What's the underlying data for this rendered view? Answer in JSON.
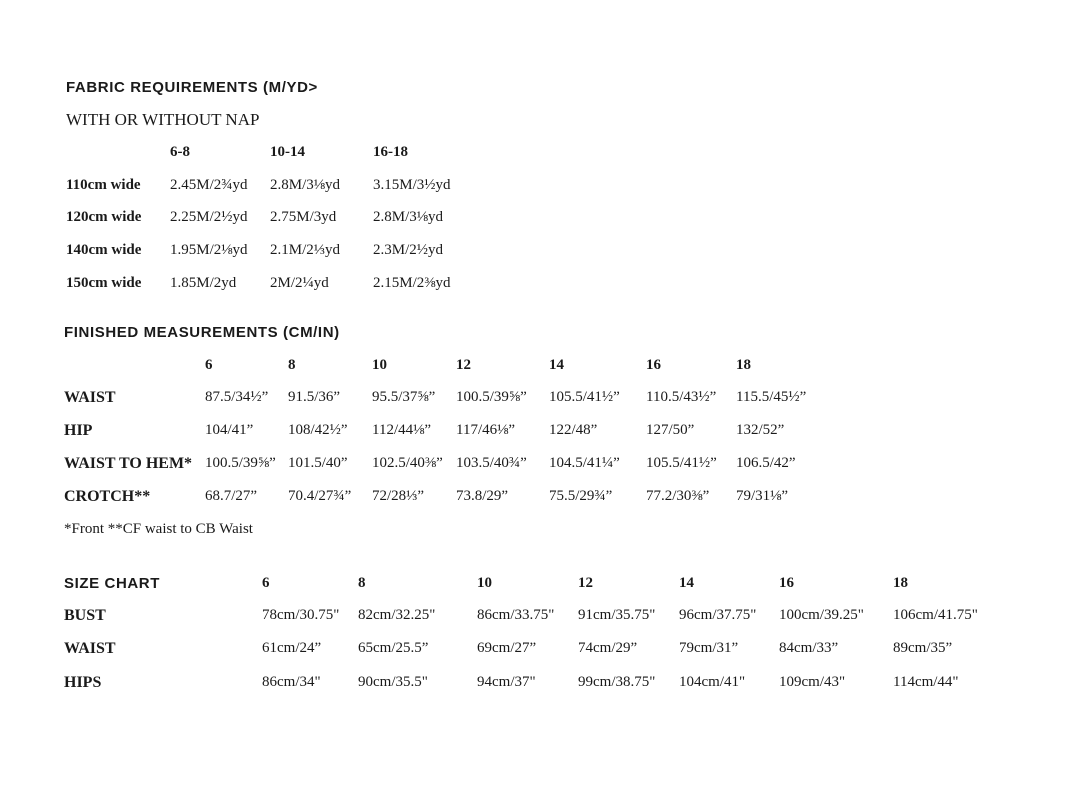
{
  "fabric": {
    "title": "FABRIC REQUIREMENTS (M/YD>",
    "subtitle": "WITH OR WITHOUT NAP",
    "headers": [
      "6-8",
      "10-14",
      "16-18"
    ],
    "rows": [
      {
        "label": "110cm wide",
        "values": [
          "2.45M/2¾yd",
          "2.8M/3⅛yd",
          "3.15M/3½yd"
        ]
      },
      {
        "label": "120cm wide",
        "values": [
          "2.25M/2½yd",
          "2.75M/3yd",
          "2.8M/3⅛yd"
        ]
      },
      {
        "label": "140cm wide",
        "values": [
          "1.95M/2⅛yd",
          "2.1M/2⅓yd",
          "2.3M/2½yd"
        ]
      },
      {
        "label": "150cm wide",
        "values": [
          "1.85M/2yd",
          "2M/2¼yd",
          "2.15M/2⅜yd"
        ]
      }
    ]
  },
  "finished": {
    "title": "FINISHED MEASUREMENTS  (CM/IN)",
    "headers": [
      "6",
      "8",
      "10",
      "12",
      "14",
      "16",
      "18"
    ],
    "rows": [
      {
        "label": "WAIST",
        "values": [
          "87.5/34½”",
          "91.5/36”",
          "95.5/37⅝”",
          "100.5/39⅝”",
          "105.5/41½”",
          "110.5/43½”",
          "115.5/45½”"
        ]
      },
      {
        "label": "HIP",
        "values": [
          "104/41”",
          "108/42½”",
          "112/44⅛”",
          "117/46⅛”",
          "122/48”",
          "127/50”",
          "132/52”"
        ]
      },
      {
        "label": "WAIST TO HEM*",
        "values": [
          "100.5/39⅝”",
          "101.5/40”",
          "102.5/40⅜”",
          "103.5/40¾”",
          "104.5/41¼”",
          "105.5/41½”",
          "106.5/42”"
        ]
      },
      {
        "label": "CROTCH**",
        "values": [
          "68.7/27”",
          "70.4/27¾”",
          "72/28⅓”",
          "73.8/29”",
          "75.5/29¾”",
          "77.2/30⅜”",
          "79/31⅛”"
        ]
      }
    ],
    "footnote": "*Front **CF waist to CB Waist"
  },
  "size_chart": {
    "title": "SIZE CHART",
    "headers": [
      "6",
      "8",
      "10",
      "12",
      "14",
      "16",
      "18"
    ],
    "rows": [
      {
        "label": "BUST",
        "values": [
          "78cm/30.75\"",
          "82cm/32.25\"",
          "86cm/33.75\"",
          "91cm/35.75\"",
          "96cm/37.75\"",
          "100cm/39.25\"",
          "106cm/41.75\""
        ]
      },
      {
        "label": "WAIST",
        "values": [
          "61cm/24”",
          "65cm/25.5”",
          "69cm/27”",
          "74cm/29”",
          "79cm/31”",
          "84cm/33”",
          "89cm/35”"
        ]
      },
      {
        "label": "HIPS",
        "values": [
          "86cm/34\"",
          "90cm/35.5\"",
          "94cm/37\"",
          "99cm/38.75\"",
          "104cm/41\"",
          "109cm/43\"",
          "114cm/44\""
        ]
      }
    ]
  }
}
